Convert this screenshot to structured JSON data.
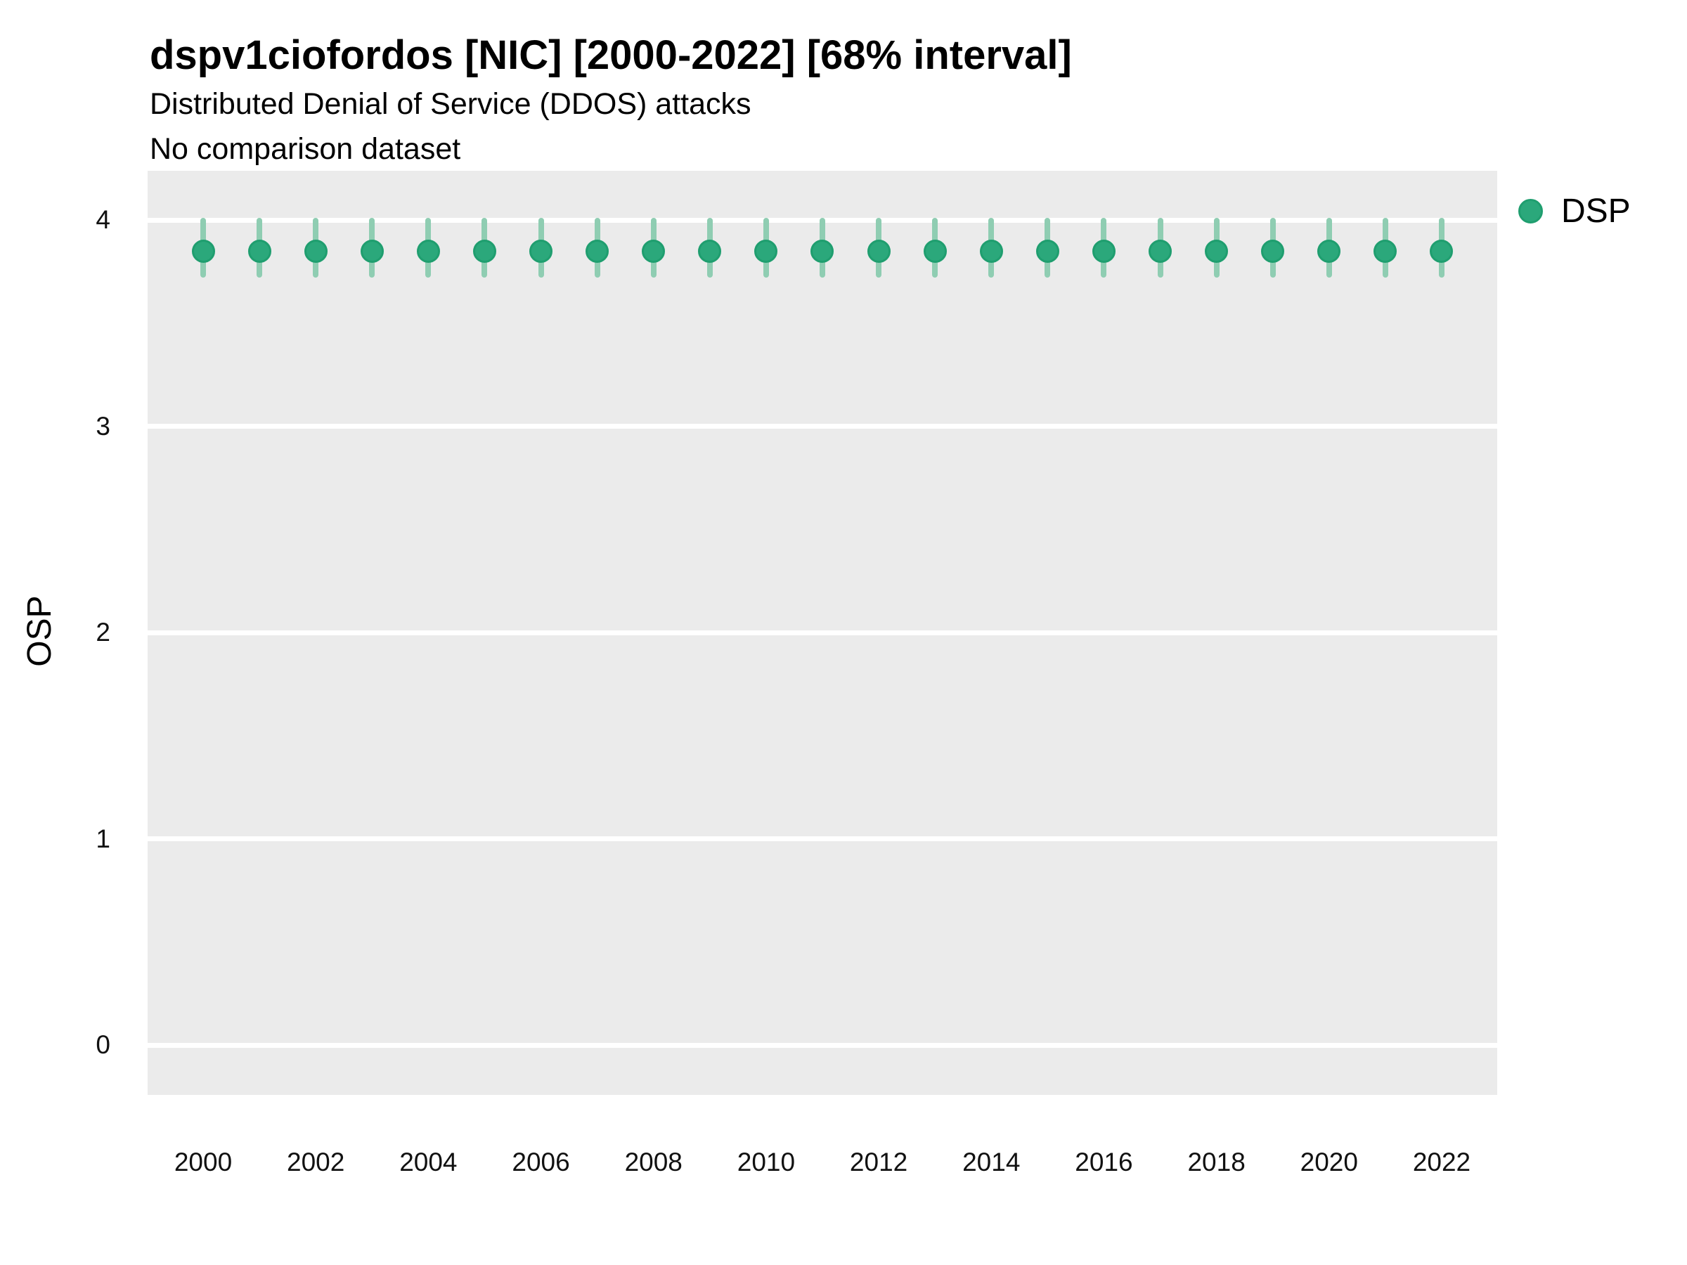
{
  "header": {
    "title": "dspv1ciofordos [NIC] [2000-2022] [68% interval]",
    "subtitle1": "Distributed Denial of Service (DDOS) attacks",
    "subtitle2": "No comparison dataset"
  },
  "axes": {
    "y_title": "OSP"
  },
  "legend": {
    "label": "DSP"
  },
  "colors": {
    "point_fill": "#2BA87B",
    "point_stroke": "#1F9E6F",
    "interval": "#8FCDB2",
    "panel_bg": "#EBEBEB",
    "gridline": "#FFFFFF",
    "text": "#000000"
  },
  "chart_data": {
    "type": "scatter",
    "subtype": "point-interval",
    "title": "dspv1ciofordos [NIC] [2000-2022] [68% interval]",
    "subtitle": [
      "Distributed Denial of Service (DDOS) attacks",
      "No comparison dataset"
    ],
    "xlabel": "",
    "ylabel": "OSP",
    "interval_level": "68%",
    "grid": "horizontal-major-only",
    "legend_position": "right",
    "xlim": [
      1999,
      2023
    ],
    "ylim": [
      -0.24,
      4.26
    ],
    "x_tick_labels": [
      "2000",
      "2002",
      "2004",
      "2006",
      "2008",
      "2010",
      "2012",
      "2014",
      "2016",
      "2018",
      "2020",
      "2022"
    ],
    "x_tick_values": [
      2000,
      2002,
      2004,
      2006,
      2008,
      2010,
      2012,
      2014,
      2016,
      2018,
      2020,
      2022
    ],
    "y_tick_labels": [
      "0",
      "1",
      "2",
      "3",
      "4"
    ],
    "y_tick_values": [
      0,
      1,
      2,
      3,
      4
    ],
    "series": [
      {
        "name": "DSP",
        "x": [
          2000,
          2001,
          2002,
          2003,
          2004,
          2005,
          2006,
          2007,
          2008,
          2009,
          2010,
          2011,
          2012,
          2013,
          2014,
          2015,
          2016,
          2017,
          2018,
          2019,
          2020,
          2021,
          2022
        ],
        "y": [
          3.85,
          3.85,
          3.85,
          3.85,
          3.85,
          3.85,
          3.85,
          3.85,
          3.85,
          3.85,
          3.85,
          3.85,
          3.85,
          3.85,
          3.85,
          3.85,
          3.85,
          3.85,
          3.85,
          3.85,
          3.85,
          3.85,
          3.85
        ],
        "y_lower": [
          3.72,
          3.72,
          3.72,
          3.72,
          3.72,
          3.72,
          3.72,
          3.72,
          3.72,
          3.72,
          3.72,
          3.72,
          3.72,
          3.72,
          3.72,
          3.72,
          3.72,
          3.72,
          3.72,
          3.72,
          3.72,
          3.72,
          3.72
        ],
        "y_upper": [
          4.01,
          4.01,
          4.01,
          4.01,
          4.01,
          4.01,
          4.01,
          4.01,
          4.01,
          4.01,
          4.01,
          4.01,
          4.01,
          4.01,
          4.01,
          4.01,
          4.01,
          4.01,
          4.01,
          4.01,
          4.01,
          4.01,
          4.01
        ]
      }
    ]
  }
}
